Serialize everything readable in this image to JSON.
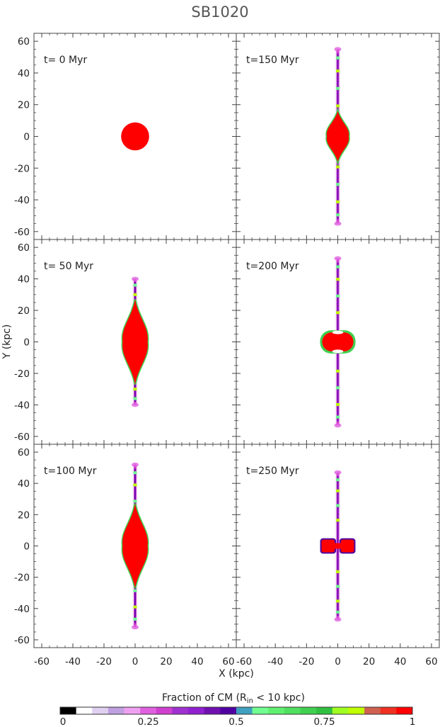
{
  "chart_data": {
    "type": "heatmap",
    "title": "SB1020",
    "xlabel": "X (kpc)",
    "ylabel": "Y (kpc)",
    "xlim": [
      -65,
      65
    ],
    "ylim": [
      -65,
      65
    ],
    "x_ticks": [
      "-60",
      "-40",
      "-20",
      "0",
      "20",
      "40",
      "60"
    ],
    "x_ticks_right": [
      "-60",
      "-40",
      "-20",
      "0",
      "20",
      "40",
      "60"
    ],
    "y_ticks_top": [
      "-60",
      "-40",
      "-20",
      "0",
      "20",
      "40",
      "60"
    ],
    "y_ticks_mid": [
      "60",
      "40",
      "20",
      "0",
      "-20",
      "-40",
      "-60"
    ],
    "y_ticks_bot": [
      "-60",
      "-40",
      "-20",
      "0",
      "20",
      "40",
      "60"
    ],
    "colorbar": {
      "label": "Fraction of CM (R",
      "label_sub": "in",
      "label_end": " < 10 kpc)",
      "ticks": [
        "0",
        "0.25",
        "0.5",
        "0.75",
        "1"
      ],
      "tick_values": [
        0,
        0.25,
        0.5,
        0.75,
        1
      ],
      "colors": [
        "#000000",
        "#ffffff",
        "#e0d0f0",
        "#c0a0e0",
        "#f0a0f0",
        "#e060e0",
        "#d040d0",
        "#a030d0",
        "#9020d0",
        "#7010b0",
        "#5000a0",
        "#40a0c0",
        "#70ff90",
        "#60f070",
        "#50e060",
        "#40d050",
        "#30c040",
        "#a0ff20",
        "#c0ff00",
        "#d06050",
        "#f03020",
        "#ff0000"
      ]
    },
    "panels": [
      {
        "time": "t=  0 Myr",
        "t_myr": 0,
        "core_rx": 9,
        "core_ry": 9,
        "core_shape": "circle",
        "jet_extent": 0
      },
      {
        "time": "t=150 Myr",
        "t_myr": 150,
        "core_rx": 7,
        "core_ry": 16,
        "core_shape": "spindle",
        "jet_extent": 55
      },
      {
        "time": "t= 50 Myr",
        "t_myr": 50,
        "core_rx": 8,
        "core_ry": 27,
        "core_shape": "spindle",
        "jet_extent": 40
      },
      {
        "time": "t=200 Myr",
        "t_myr": 200,
        "core_rx": 10,
        "core_ry": 6,
        "core_shape": "peanut",
        "jet_extent": 53
      },
      {
        "time": "t=100 Myr",
        "t_myr": 100,
        "core_rx": 8,
        "core_ry": 27,
        "core_shape": "spindle",
        "jet_extent": 52
      },
      {
        "time": "t=250 Myr",
        "t_myr": 250,
        "core_rx": 10,
        "core_ry": 4,
        "core_shape": "double",
        "jet_extent": 47
      }
    ]
  }
}
